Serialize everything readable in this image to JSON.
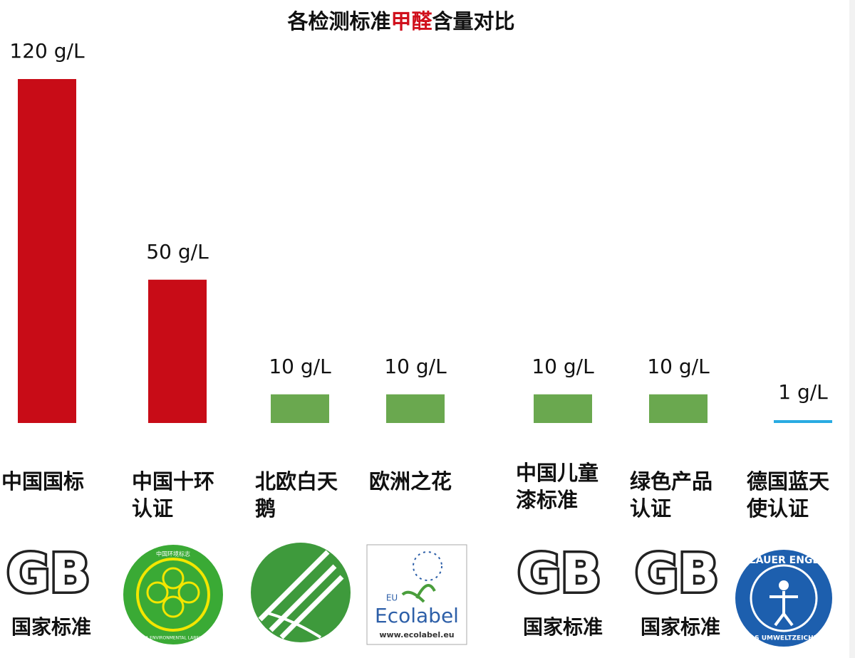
{
  "chart_data": {
    "type": "bar",
    "title": {
      "before": "各检测标准",
      "highlight": "甲醛",
      "after": "含量对比"
    },
    "categories": [
      "中国国标",
      "中国十环认证",
      "北欧白天鹅",
      "欧洲之花",
      "中国儿童漆标准",
      "绿色产品认证",
      "德国蓝天使认证"
    ],
    "values": [
      120,
      50,
      10,
      10,
      10,
      10,
      1
    ],
    "value_labels": [
      "120 g/L",
      "50 g/L",
      "10 g/L",
      "10 g/L",
      "10 g/L",
      "10 g/L",
      "1 g/L"
    ],
    "colors": [
      "#c80c17",
      "#c80c17",
      "#6aa84f",
      "#6aa84f",
      "#6aa84f",
      "#6aa84f",
      "#29abe2"
    ],
    "ylim": [
      0,
      120
    ]
  },
  "logos": {
    "gb": "GB",
    "gb_caption": "国家标准",
    "china_label": "中国环境标志",
    "china_label_en": "CHINA ENVIRONMENTAL LABELLING",
    "eu": "EU",
    "ecolabel": "Ecolabel",
    "ecolabel_url": "www.ecolabel.eu",
    "blue_angel": "BLAUER ENGEL",
    "blue_angel_sub": "DAS UMWELTZEICHEN"
  }
}
